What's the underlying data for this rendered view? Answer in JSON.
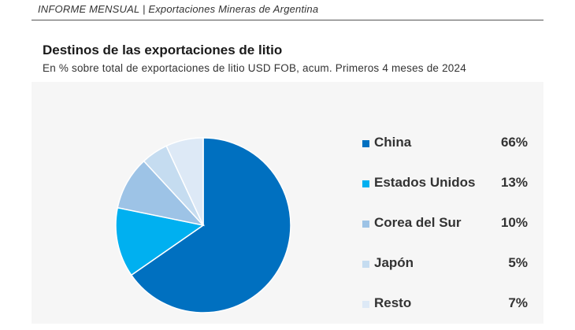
{
  "header": {
    "text": "INFORME MENSUAL |  Exportaciones Mineras de Argentina"
  },
  "chart_data": {
    "type": "pie",
    "title": "Destinos de las exportaciones de litio",
    "subtitle": "En % sobre total de exportaciones de litio USD FOB, acum. Primeros 4 meses de  2024",
    "legend_position": "right",
    "slices": [
      {
        "label": "China",
        "value": 66,
        "value_label": "66%",
        "color": "#0070c0"
      },
      {
        "label": "Estados Unidos",
        "value": 13,
        "value_label": "13%",
        "color": "#00b0f0"
      },
      {
        "label": "Corea del Sur",
        "value": 10,
        "value_label": "10%",
        "color": "#9dc3e6"
      },
      {
        "label": "Japón",
        "value": 5,
        "value_label": "5%",
        "color": "#c5dcf0"
      },
      {
        "label": "Resto",
        "value": 7,
        "value_label": "7%",
        "color": "#dde9f6"
      }
    ]
  }
}
